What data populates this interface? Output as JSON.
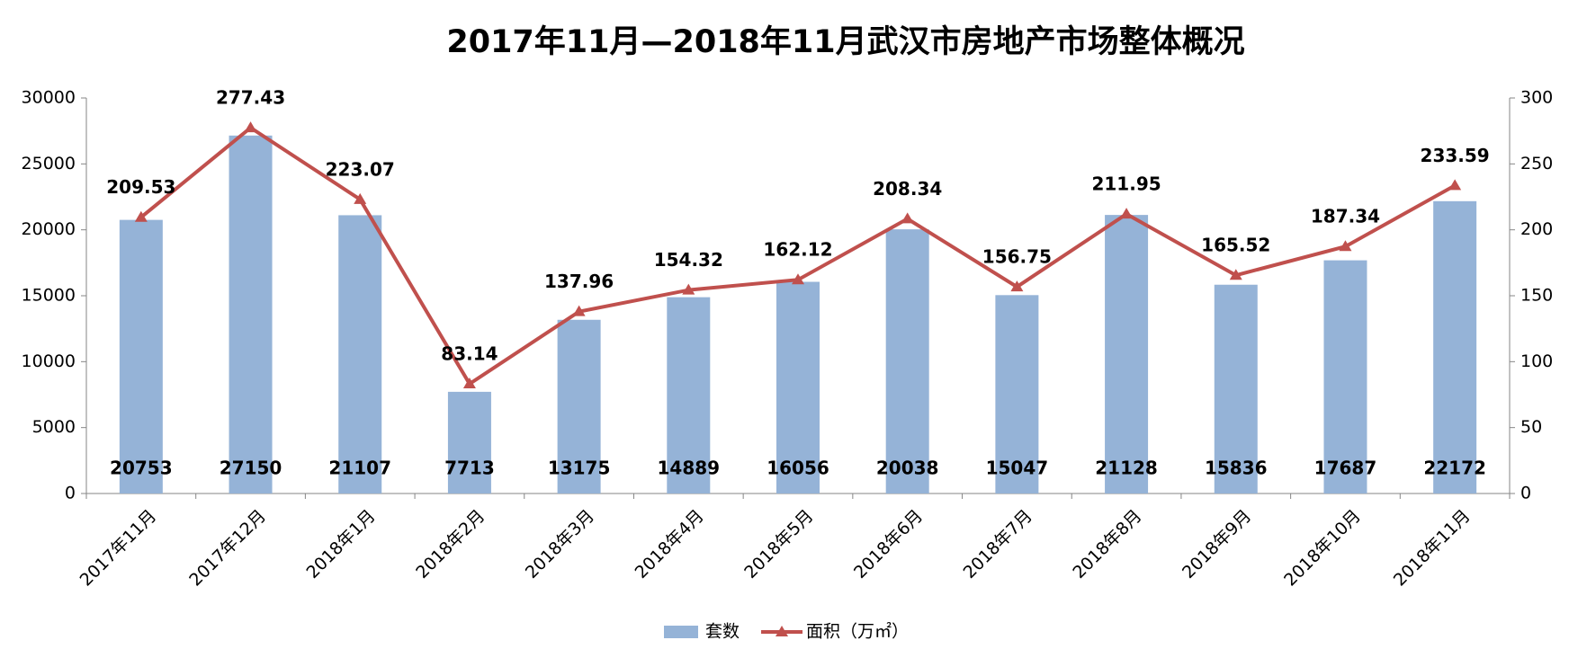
{
  "chart_data": {
    "type": "bar-line",
    "title": "2017年11月—2018年11月武汉市房地产市场整体概况",
    "categories": [
      "2017年11月",
      "2017年12月",
      "2018年1月",
      "2018年2月",
      "2018年3月",
      "2018年4月",
      "2018年5月",
      "2018年6月",
      "2018年7月",
      "2018年8月",
      "2018年9月",
      "2018年10月",
      "2018年11月"
    ],
    "series": [
      {
        "name": "套数",
        "type": "bar",
        "color": "#95b3d7",
        "values": [
          20753,
          27150,
          21107,
          7713,
          13175,
          14889,
          16056,
          20038,
          15047,
          21128,
          15836,
          17687,
          22172
        ]
      },
      {
        "name": "面积（万㎡）",
        "type": "line",
        "axis": "y2",
        "color": "#c0504d",
        "values": [
          209.53,
          277.43,
          223.07,
          83.14,
          137.96,
          154.32,
          162.12,
          208.34,
          156.75,
          211.95,
          165.52,
          187.34,
          233.59
        ]
      }
    ],
    "ylim": [
      0,
      30000
    ],
    "yticks": [
      0,
      5000,
      10000,
      15000,
      20000,
      25000,
      30000
    ],
    "y2lim": [
      0,
      300
    ],
    "y2ticks": [
      0,
      50,
      100,
      150,
      200,
      250,
      300
    ],
    "legend": "bottom"
  }
}
